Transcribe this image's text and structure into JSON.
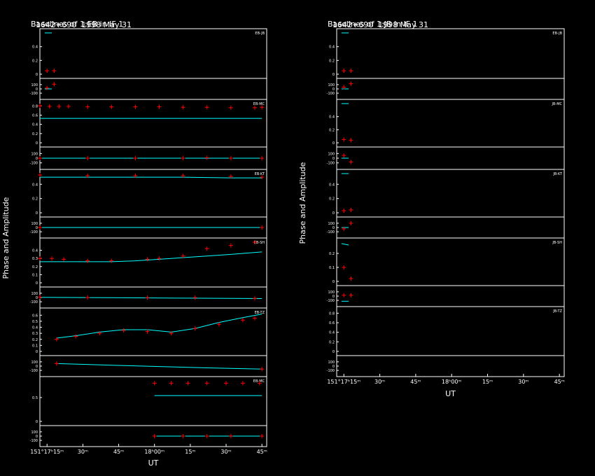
{
  "colors": {
    "background": "#000000",
    "axes": "#ffffff",
    "model": "#00ffff",
    "points": "#ff0000",
    "amp_points": "#00ff00"
  },
  "chart_data": [
    {
      "type": "scatter",
      "source": "1642+690",
      "date": "1998 May 31",
      "title": "Baselines of 1:EB in IF 1",
      "ylabel": "Phase and Amplitude",
      "xlabel": "UT",
      "xticks": [
        "151°17ʰ15ᵐ",
        "30ᵐ",
        "45ᵐ",
        "18ʰ00ᵐ",
        "15ᵐ",
        "30ᵐ",
        "45ᵐ"
      ],
      "xlim": [
        0,
        95
      ],
      "panels": [
        {
          "label": "EB-JB",
          "amp_ticks": [
            "0.4",
            "0.2",
            "0"
          ],
          "amp_ylim": [
            0,
            0.6
          ],
          "phase_ticks": [
            "100",
            "0",
            "-100"
          ],
          "amp_points": [
            [
              3,
              0.05
            ],
            [
              6,
              0.05
            ]
          ],
          "amp_model": [
            [
              2,
              0.6
            ],
            [
              5,
              0.6
            ]
          ],
          "phase_points": [
            [
              3,
              20
            ],
            [
              6,
              110
            ]
          ],
          "phase_model": [
            [
              2,
              0
            ],
            [
              5,
              0
            ]
          ]
        },
        {
          "label": "EB-MC",
          "amp_ticks": [
            "0.8",
            "0.6",
            "0.4",
            "0.2",
            "0"
          ],
          "amp_ylim": [
            0,
            0.85
          ],
          "phase_ticks": [
            "100",
            "0",
            "-100"
          ],
          "amp_points": [
            [
              0,
              0.8
            ],
            [
              4,
              0.79
            ],
            [
              8,
              0.79
            ],
            [
              12,
              0.79
            ],
            [
              20,
              0.78
            ],
            [
              30,
              0.78
            ],
            [
              40,
              0.78
            ],
            [
              50,
              0.78
            ],
            [
              60,
              0.77
            ],
            [
              70,
              0.77
            ],
            [
              80,
              0.76
            ],
            [
              90,
              0.76
            ],
            [
              93,
              0.77
            ]
          ],
          "amp_model": [
            [
              0,
              0.53
            ],
            [
              93,
              0.53
            ]
          ],
          "phase_points": [
            [
              0,
              0
            ],
            [
              20,
              0
            ],
            [
              40,
              0
            ],
            [
              60,
              0
            ],
            [
              70,
              10
            ],
            [
              80,
              0
            ],
            [
              93,
              0
            ]
          ],
          "phase_model": [
            [
              0,
              0
            ],
            [
              93,
              0
            ]
          ]
        },
        {
          "label": "EB-KT",
          "amp_ticks": [
            "0.4",
            "0.2",
            "0"
          ],
          "amp_ylim": [
            0,
            0.55
          ],
          "phase_ticks": [
            "100",
            "0",
            "-100"
          ],
          "amp_points": [
            [
              0,
              0.53
            ],
            [
              20,
              0.52
            ],
            [
              40,
              0.52
            ],
            [
              60,
              0.52
            ],
            [
              80,
              0.51
            ],
            [
              93,
              0.5
            ]
          ],
          "amp_model": [
            [
              0,
              0.5
            ],
            [
              30,
              0.5
            ],
            [
              60,
              0.5
            ],
            [
              80,
              0.49
            ],
            [
              93,
              0.49
            ]
          ],
          "phase_points": [
            [
              0,
              0
            ],
            [
              93,
              0
            ]
          ],
          "phase_model": [
            [
              0,
              0
            ],
            [
              93,
              0
            ]
          ]
        },
        {
          "label": "EB-SH",
          "amp_ticks": [
            "0.4",
            "0.3",
            "0.2",
            "0.1",
            "0"
          ],
          "amp_ylim": [
            0,
            0.5
          ],
          "phase_ticks": [
            "100",
            "0",
            "-100"
          ],
          "amp_points": [
            [
              0,
              0.3
            ],
            [
              5,
              0.3
            ],
            [
              10,
              0.29
            ],
            [
              20,
              0.27
            ],
            [
              30,
              0.27
            ],
            [
              45,
              0.29
            ],
            [
              50,
              0.3
            ],
            [
              60,
              0.33
            ],
            [
              70,
              0.42
            ],
            [
              80,
              0.46
            ],
            [
              90,
              0.5
            ]
          ],
          "amp_model": [
            [
              0,
              0.26
            ],
            [
              10,
              0.26
            ],
            [
              30,
              0.26
            ],
            [
              40,
              0.27
            ],
            [
              50,
              0.29
            ],
            [
              60,
              0.31
            ],
            [
              70,
              0.33
            ],
            [
              80,
              0.35
            ],
            [
              93,
              0.38
            ]
          ],
          "phase_points": [
            [
              0,
              10
            ],
            [
              20,
              0
            ],
            [
              45,
              -5
            ],
            [
              65,
              -5
            ],
            [
              90,
              -20
            ]
          ],
          "phase_model": [
            [
              0,
              5
            ],
            [
              30,
              -5
            ],
            [
              60,
              -15
            ],
            [
              93,
              -25
            ]
          ]
        },
        {
          "label": "EB-TZ",
          "amp_ticks": [
            "0.6",
            "0.5",
            "0.4",
            "0.3",
            "0.2",
            "0.1",
            "0"
          ],
          "amp_ylim": [
            0,
            0.65
          ],
          "phase_ticks": [
            "100",
            "0",
            "-100"
          ],
          "amp_points": [
            [
              7,
              0.2
            ],
            [
              15,
              0.25
            ],
            [
              25,
              0.3
            ],
            [
              35,
              0.35
            ],
            [
              45,
              0.33
            ],
            [
              55,
              0.3
            ],
            [
              65,
              0.38
            ],
            [
              75,
              0.45
            ],
            [
              85,
              0.52
            ],
            [
              90,
              0.55
            ]
          ],
          "amp_model": [
            [
              7,
              0.22
            ],
            [
              15,
              0.26
            ],
            [
              25,
              0.32
            ],
            [
              35,
              0.36
            ],
            [
              45,
              0.36
            ],
            [
              55,
              0.32
            ],
            [
              65,
              0.38
            ],
            [
              75,
              0.48
            ],
            [
              85,
              0.56
            ],
            [
              93,
              0.62
            ]
          ],
          "phase_points": [
            [
              7,
              60
            ],
            [
              93,
              -70
            ]
          ],
          "phase_model": [
            [
              7,
              60
            ],
            [
              30,
              20
            ],
            [
              50,
              -10
            ],
            [
              70,
              -40
            ],
            [
              93,
              -70
            ]
          ]
        },
        {
          "label": "EB-MC",
          "amp_ticks": [
            "0.5",
            "0"
          ],
          "amp_ylim": [
            0,
            0.85
          ],
          "phase_ticks": [
            "100",
            "0",
            "-100"
          ],
          "amp_points": [
            [
              48,
              0.8
            ],
            [
              55,
              0.8
            ],
            [
              62,
              0.8
            ],
            [
              70,
              0.8
            ],
            [
              78,
              0.8
            ],
            [
              85,
              0.8
            ],
            [
              92,
              0.8
            ]
          ],
          "amp_model": [
            [
              48,
              0.54
            ],
            [
              93,
              0.54
            ]
          ],
          "phase_points": [
            [
              48,
              0
            ],
            [
              60,
              0
            ],
            [
              70,
              0
            ],
            [
              80,
              5
            ],
            [
              93,
              0
            ]
          ],
          "phase_model": [
            [
              48,
              0
            ],
            [
              93,
              0
            ]
          ]
        }
      ]
    },
    {
      "type": "scatter",
      "source": "1642+690",
      "date": "1998 May 31",
      "title": "Baselines of 1:JB in IF 1",
      "ylabel": "Phase and Amplitude",
      "xlabel": "UT",
      "xticks": [
        "151°17ʰ15ᵐ",
        "30ᵐ",
        "45ᵐ",
        "18ʰ00ᵐ",
        "15ᵐ",
        "30ᵐ",
        "45ᵐ"
      ],
      "xlim": [
        0,
        95
      ],
      "panels": [
        {
          "label": "EB-JB",
          "amp_ticks": [
            "0.4",
            "0.2",
            "0"
          ],
          "amp_ylim": [
            0,
            0.6
          ],
          "phase_ticks": [
            "100",
            "0",
            "-100"
          ],
          "amp_points": [
            [
              3,
              0.05
            ],
            [
              6,
              0.05
            ]
          ],
          "amp_model": [
            [
              2,
              0.6
            ],
            [
              5,
              0.6
            ]
          ],
          "phase_points": [
            [
              3,
              40
            ],
            [
              6,
              120
            ]
          ],
          "phase_model": [
            [
              2,
              0
            ],
            [
              5,
              0
            ]
          ]
        },
        {
          "label": "JB-MC",
          "amp_ticks": [
            "0.4",
            "0.2",
            "0"
          ],
          "amp_ylim": [
            0,
            0.6
          ],
          "phase_ticks": [
            "100",
            "0",
            "-100"
          ],
          "amp_points": [
            [
              3,
              0.05
            ],
            [
              6,
              0.04
            ]
          ],
          "amp_model": [
            [
              2,
              0.6
            ],
            [
              5,
              0.6
            ]
          ],
          "phase_points": [
            [
              3,
              60
            ],
            [
              6,
              -80
            ]
          ],
          "phase_model": [
            [
              2,
              0
            ],
            [
              5,
              0
            ]
          ]
        },
        {
          "label": "JB-KT",
          "amp_ticks": [
            "0.4",
            "0.2",
            "0"
          ],
          "amp_ylim": [
            0,
            0.55
          ],
          "phase_ticks": [
            "100",
            "0",
            "-100"
          ],
          "amp_points": [
            [
              3,
              0.03
            ],
            [
              6,
              0.04
            ]
          ],
          "amp_model": [
            [
              2,
              0.55
            ],
            [
              5,
              0.55
            ]
          ],
          "phase_points": [
            [
              3,
              -30
            ],
            [
              6,
              100
            ]
          ],
          "phase_model": [
            [
              2,
              0
            ],
            [
              5,
              0
            ]
          ]
        },
        {
          "label": "JB-SH",
          "amp_ticks": [
            "0.2",
            "0.1",
            "0"
          ],
          "amp_ylim": [
            0,
            0.28
          ],
          "phase_ticks": [
            "100",
            "0",
            "-100"
          ],
          "amp_points": [
            [
              3,
              0.1
            ],
            [
              6,
              0.02
            ]
          ],
          "amp_model": [
            [
              2,
              0.27
            ],
            [
              5,
              0.26
            ]
          ],
          "phase_points": [
            [
              3,
              20
            ],
            [
              6,
              20
            ]
          ],
          "phase_model": [
            [
              2,
              -120
            ],
            [
              5,
              -120
            ]
          ]
        },
        {
          "label": "JB-TZ",
          "amp_ticks": [
            "0.8",
            "0.6",
            "0.4",
            "0.2",
            "0"
          ],
          "amp_ylim": [
            0,
            0.85
          ],
          "phase_ticks": [
            "100",
            "0",
            "-100"
          ],
          "amp_points": [],
          "amp_model": [],
          "phase_points": [],
          "phase_model": []
        }
      ]
    }
  ]
}
